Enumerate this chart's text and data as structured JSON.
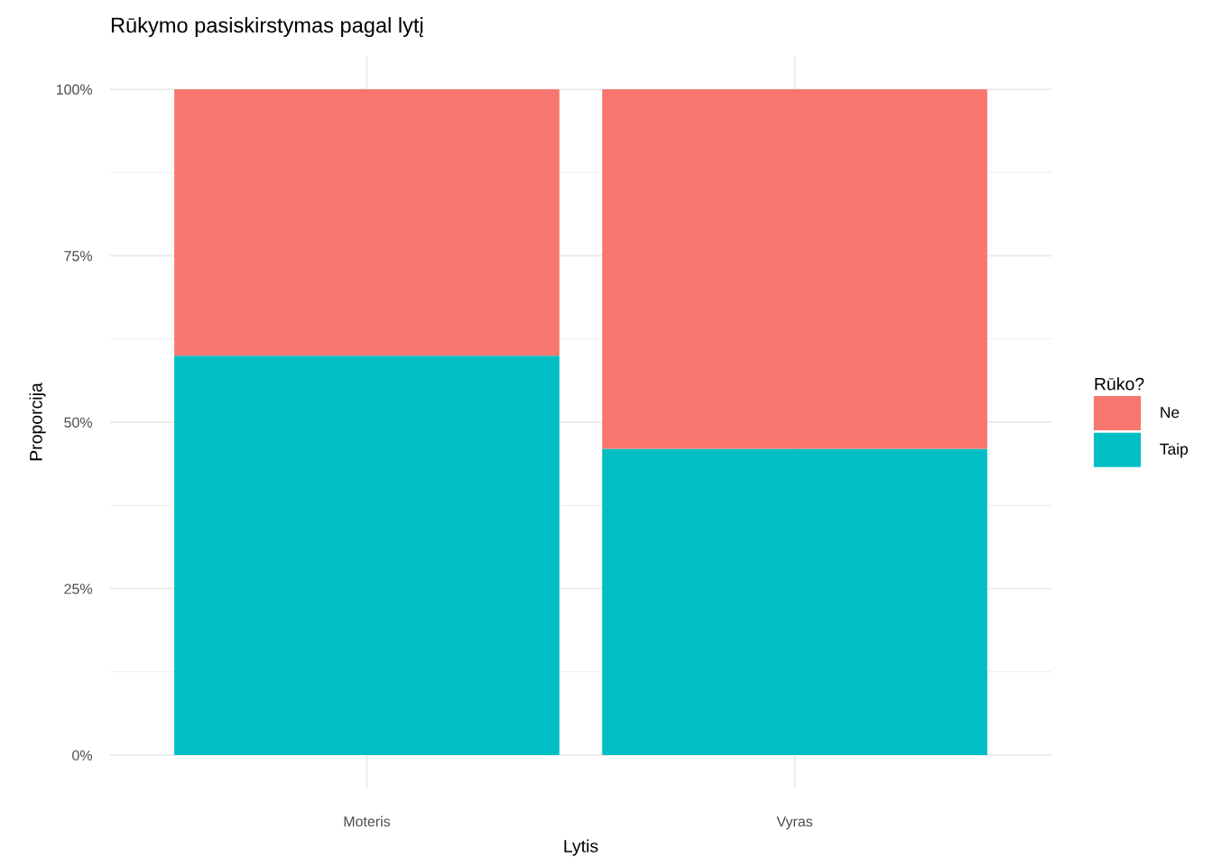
{
  "chart_data": {
    "type": "bar",
    "title": "Rūkymo pasiskirstymas pagal lytį",
    "xlabel": "Lytis",
    "ylabel": "Proporcija",
    "legend_title": "Rūko?",
    "categories": [
      "Moteris",
      "Vyras"
    ],
    "series": [
      {
        "name": "Taip",
        "color": "#00bfc4",
        "values": [
          60,
          46
        ]
      },
      {
        "name": "Ne",
        "color": "#f8766d",
        "values": [
          40,
          54
        ]
      }
    ],
    "stacked": true,
    "ylim": [
      -5,
      105
    ],
    "yticks": [
      {
        "value": 0,
        "label": "0%"
      },
      {
        "value": 12.5,
        "label": null
      },
      {
        "value": 25,
        "label": "25%"
      },
      {
        "value": 37.5,
        "label": null
      },
      {
        "value": 50,
        "label": "50%"
      },
      {
        "value": 62.5,
        "label": null
      },
      {
        "value": 75,
        "label": "75%"
      },
      {
        "value": 87.5,
        "label": null
      },
      {
        "value": 100,
        "label": "100%"
      }
    ],
    "grid": true,
    "legend": "right"
  }
}
